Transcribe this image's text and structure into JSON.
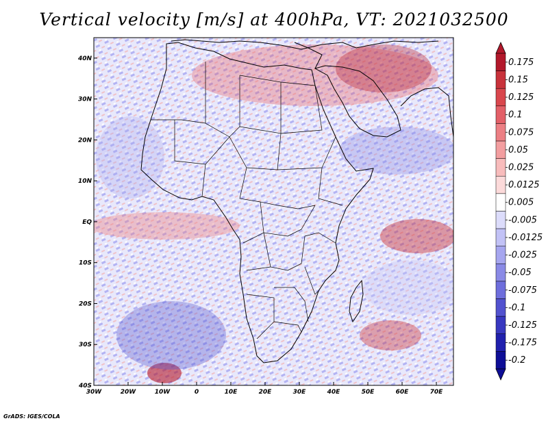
{
  "title": "Vertical velocity [m/s] at 400hPa, VT: 2021032500",
  "credit": "GrADS: IGES/COLA",
  "map": {
    "lon_range": [
      -30,
      75
    ],
    "lat_range": [
      -40,
      45
    ],
    "lon_ticks": [
      "30W",
      "20W",
      "10W",
      "0",
      "10E",
      "20E",
      "30E",
      "40E",
      "50E",
      "60E",
      "70E"
    ],
    "lat_ticks": [
      "40N",
      "30N",
      "20N",
      "10N",
      "EQ",
      "10S",
      "20S",
      "30S",
      "40S"
    ]
  },
  "colorbar": {
    "labels": [
      "0.175",
      "0.15",
      "0.125",
      "0.1",
      "0.075",
      "0.05",
      "0.025",
      "0.0125",
      "0.005",
      "-0.005",
      "-0.0125",
      "-0.025",
      "-0.05",
      "-0.075",
      "-0.1",
      "-0.125",
      "-0.175",
      "-0.2"
    ],
    "colors": [
      "#b2182b",
      "#c8323b",
      "#d9474d",
      "#e36068",
      "#ec7f84",
      "#f39ea0",
      "#f8bcbc",
      "#fcdada",
      "#ffffff",
      "#dcdcfb",
      "#c2c2f6",
      "#a6a6ef",
      "#8a8ae6",
      "#6e6edc",
      "#5252cf",
      "#3838c0",
      "#2020ad",
      "#0e0e96"
    ]
  }
}
